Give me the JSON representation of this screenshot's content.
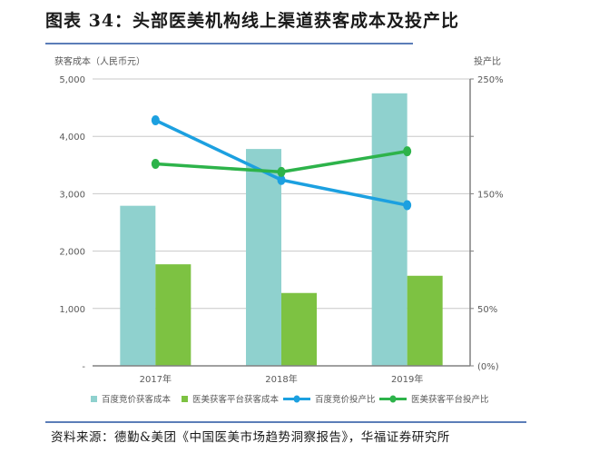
{
  "header": {
    "title": "图表 34：头部医美机构线上渠道获客成本及投产比"
  },
  "footer": {
    "source": "资料来源：德勤&美团《中国医美市场趋势洞察报告》，华福证券研究所"
  },
  "colors": {
    "baidu_cost_bar": "#8fd1ce",
    "platform_cost_bar": "#7dc242",
    "baidu_roi_line": "#1ca0e0",
    "platform_roi_line": "#2db34a",
    "title_rule": "#5b7db8",
    "gridline": "#c8c8c8",
    "axis": "#808080"
  },
  "chart_data": {
    "type": "bar+line",
    "title": "头部医美机构线上渠道获客成本及投产比",
    "categories": [
      "2017年",
      "2018年",
      "2019年"
    ],
    "y_left": {
      "label": "获客成本（人民币元）",
      "range": [
        0,
        5000
      ],
      "ticks": [
        "-",
        "1,000",
        "2,000",
        "3,000",
        "4,000",
        "5,000"
      ]
    },
    "y_right": {
      "label": "投产比",
      "range": [
        0,
        250
      ],
      "unit": "%",
      "ticks": [
        "(0%)",
        "50%",
        "150%",
        "250%"
      ]
    },
    "series": [
      {
        "name": "百度竞价获客成本",
        "type": "bar",
        "axis": "left",
        "values": [
          2790,
          3780,
          4750
        ]
      },
      {
        "name": "医美获客平台获客成本",
        "type": "bar",
        "axis": "left",
        "values": [
          1770,
          1270,
          1570
        ]
      },
      {
        "name": "百度竞价投产比",
        "type": "line",
        "axis": "right",
        "values": [
          214,
          162,
          140
        ]
      },
      {
        "name": "医美获客平台投产比",
        "type": "line",
        "axis": "right",
        "values": [
          176,
          169,
          187
        ]
      }
    ],
    "grid": true,
    "legend_position": "bottom"
  }
}
